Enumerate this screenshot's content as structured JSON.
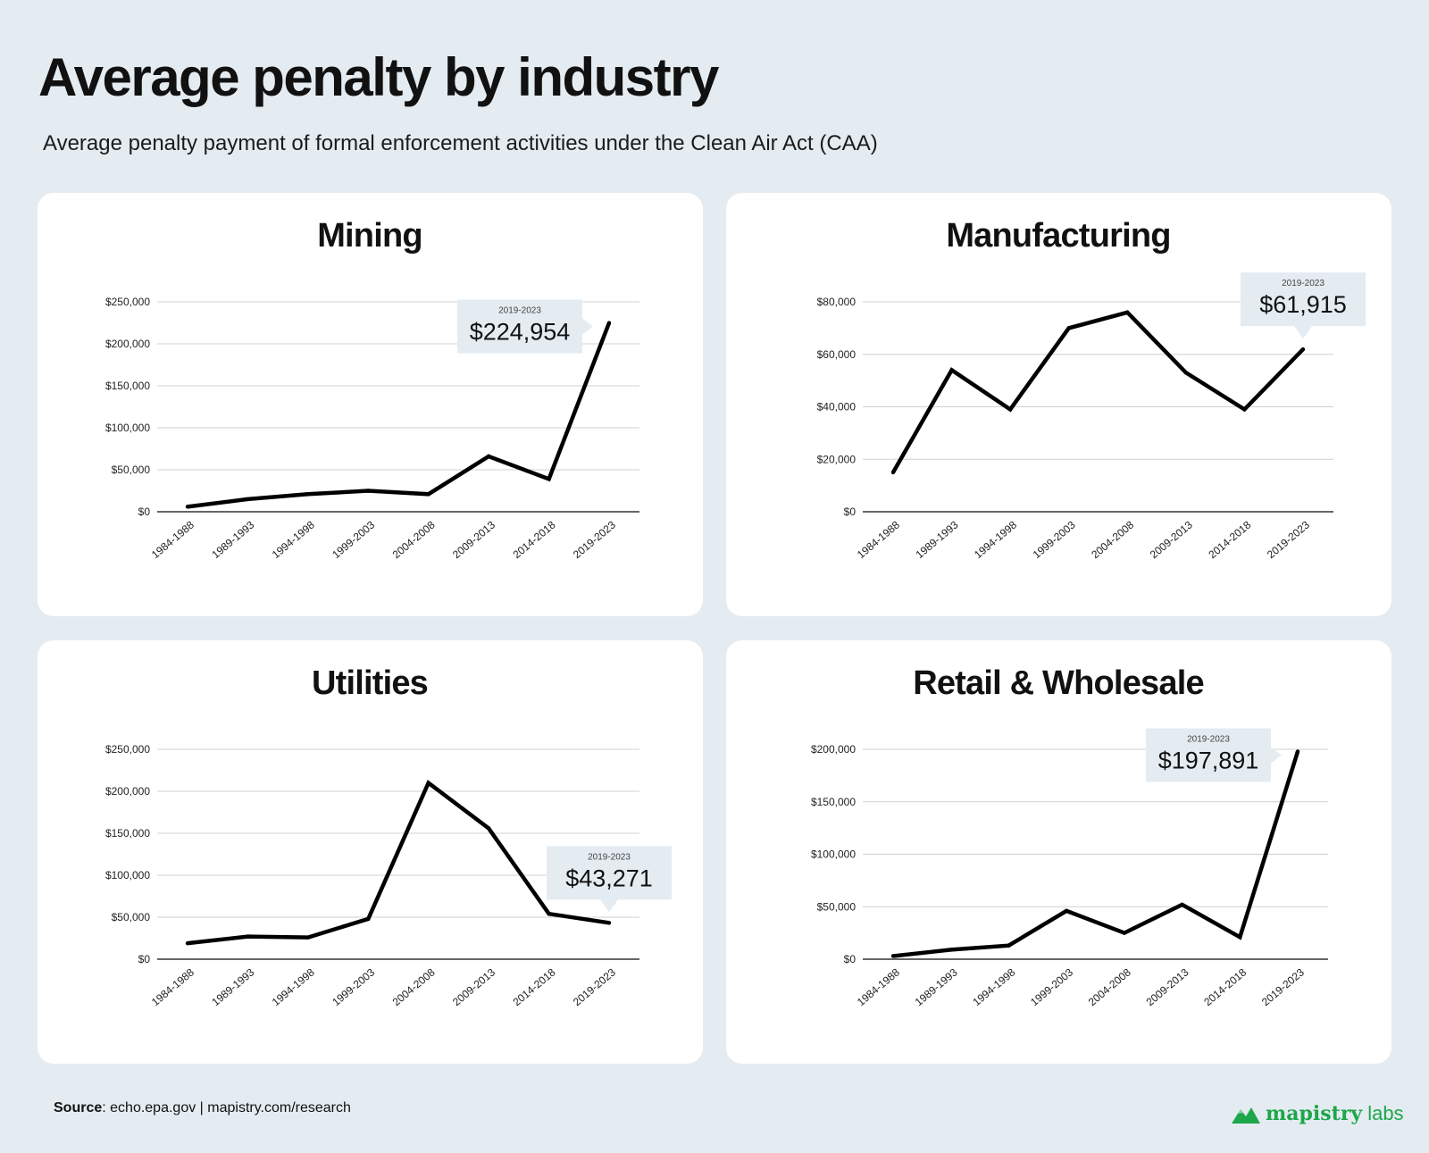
{
  "title": "Average penalty by industry",
  "subtitle": "Average penalty payment of formal enforcement activities under the Clean Air Act (CAA)",
  "footer": {
    "source_label": "Source",
    "source_text": ": echo.epa.gov | mapistry.com/research",
    "logo_main": "mapistry",
    "logo_sub": "labs"
  },
  "colors": {
    "background": "#e4ecf2",
    "panel": "#ffffff",
    "line": "#000000",
    "callout": "#e4ecf2",
    "grid": "#d0d0d0",
    "brand": "#1ea64a"
  },
  "chart_data": [
    {
      "type": "line",
      "title": "Mining",
      "categories": [
        "1984-1988",
        "1989-1993",
        "1994-1998",
        "1999-2003",
        "2004-2008",
        "2009-2013",
        "2014-2018",
        "2019-2023"
      ],
      "values": [
        6000,
        15000,
        21000,
        25000,
        21000,
        66000,
        39000,
        224954
      ],
      "ylim": [
        0,
        250000
      ],
      "yticks": [
        0,
        50000,
        100000,
        150000,
        200000,
        250000
      ],
      "ytick_labels": [
        "$0",
        "$50,000",
        "$100,000",
        "$150,000",
        "$200,000",
        "$250,000"
      ],
      "grid": true,
      "callout": {
        "label": "2019-2023",
        "value": "$224,954",
        "pointer": "right"
      }
    },
    {
      "type": "line",
      "title": "Manufacturing",
      "categories": [
        "1984-1988",
        "1989-1993",
        "1994-1998",
        "1999-2003",
        "2004-2008",
        "2009-2013",
        "2014-2018",
        "2019-2023"
      ],
      "values": [
        15000,
        54000,
        39000,
        70000,
        76000,
        53000,
        39000,
        61915
      ],
      "ylim": [
        0,
        80000
      ],
      "yticks": [
        0,
        20000,
        40000,
        60000,
        80000
      ],
      "ytick_labels": [
        "$0",
        "$20,000",
        "$40,000",
        "$60,000",
        "$80,000"
      ],
      "grid": true,
      "callout": {
        "label": "2019-2023",
        "value": "$61,915",
        "pointer": "down"
      }
    },
    {
      "type": "line",
      "title": "Utilities",
      "categories": [
        "1984-1988",
        "1989-1993",
        "1994-1998",
        "1999-2003",
        "2004-2008",
        "2009-2013",
        "2014-2018",
        "2019-2023"
      ],
      "values": [
        19000,
        27000,
        26000,
        48000,
        210000,
        156000,
        54000,
        43271
      ],
      "ylim": [
        0,
        250000
      ],
      "yticks": [
        0,
        50000,
        100000,
        150000,
        200000,
        250000
      ],
      "ytick_labels": [
        "$0",
        "$50,000",
        "$100,000",
        "$150,000",
        "$200,000",
        "$250,000"
      ],
      "grid": true,
      "callout": {
        "label": "2019-2023",
        "value": "$43,271",
        "pointer": "down"
      }
    },
    {
      "type": "line",
      "title": "Retail & Wholesale",
      "categories": [
        "1984-1988",
        "1989-1993",
        "1994-1998",
        "1999-2003",
        "2004-2008",
        "2009-2013",
        "2014-2018",
        "2019-2023"
      ],
      "values": [
        3000,
        9000,
        13000,
        46000,
        25000,
        52000,
        21000,
        197891
      ],
      "ylim": [
        0,
        200000
      ],
      "yticks": [
        0,
        50000,
        100000,
        150000,
        200000
      ],
      "ytick_labels": [
        "$0",
        "$50,000",
        "$100,000",
        "$150,000",
        "$200,000"
      ],
      "grid": true,
      "callout": {
        "label": "2019-2023",
        "value": "$197,891",
        "pointer": "right"
      }
    }
  ]
}
